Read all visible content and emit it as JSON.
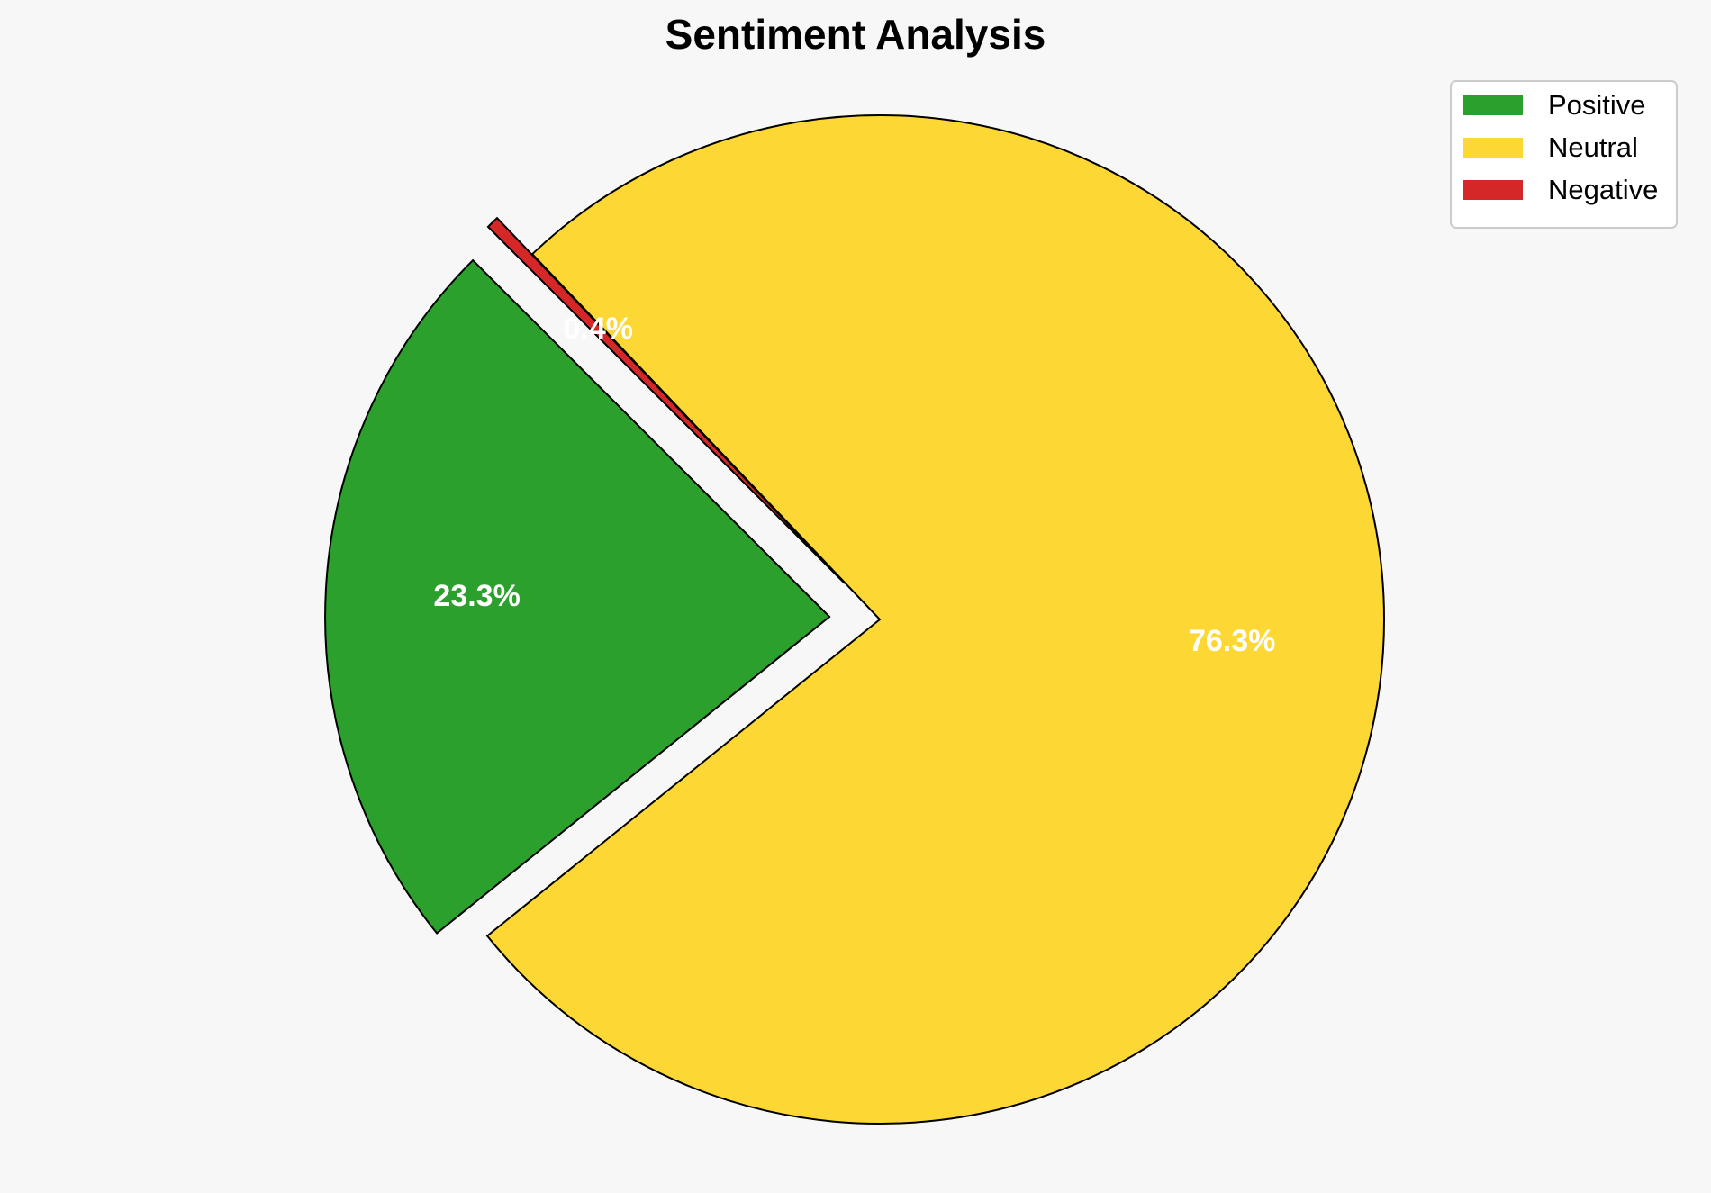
{
  "chart_data": {
    "type": "pie",
    "title": "Sentiment Analysis",
    "slices": [
      {
        "label": "Positive",
        "value": 23.3,
        "value_label": "23.3%",
        "color": "#2ca02c"
      },
      {
        "label": "Neutral",
        "value": 76.3,
        "value_label": "76.3%",
        "color": "#fdd835"
      },
      {
        "label": "Negative",
        "value": 0.4,
        "value_label": "0.4%",
        "color": "#d62728"
      }
    ],
    "start_angle_deg": 135,
    "exploded": true,
    "legend_placement": "top-right",
    "label_color": "#ffffff",
    "edge_color": "#000000"
  }
}
